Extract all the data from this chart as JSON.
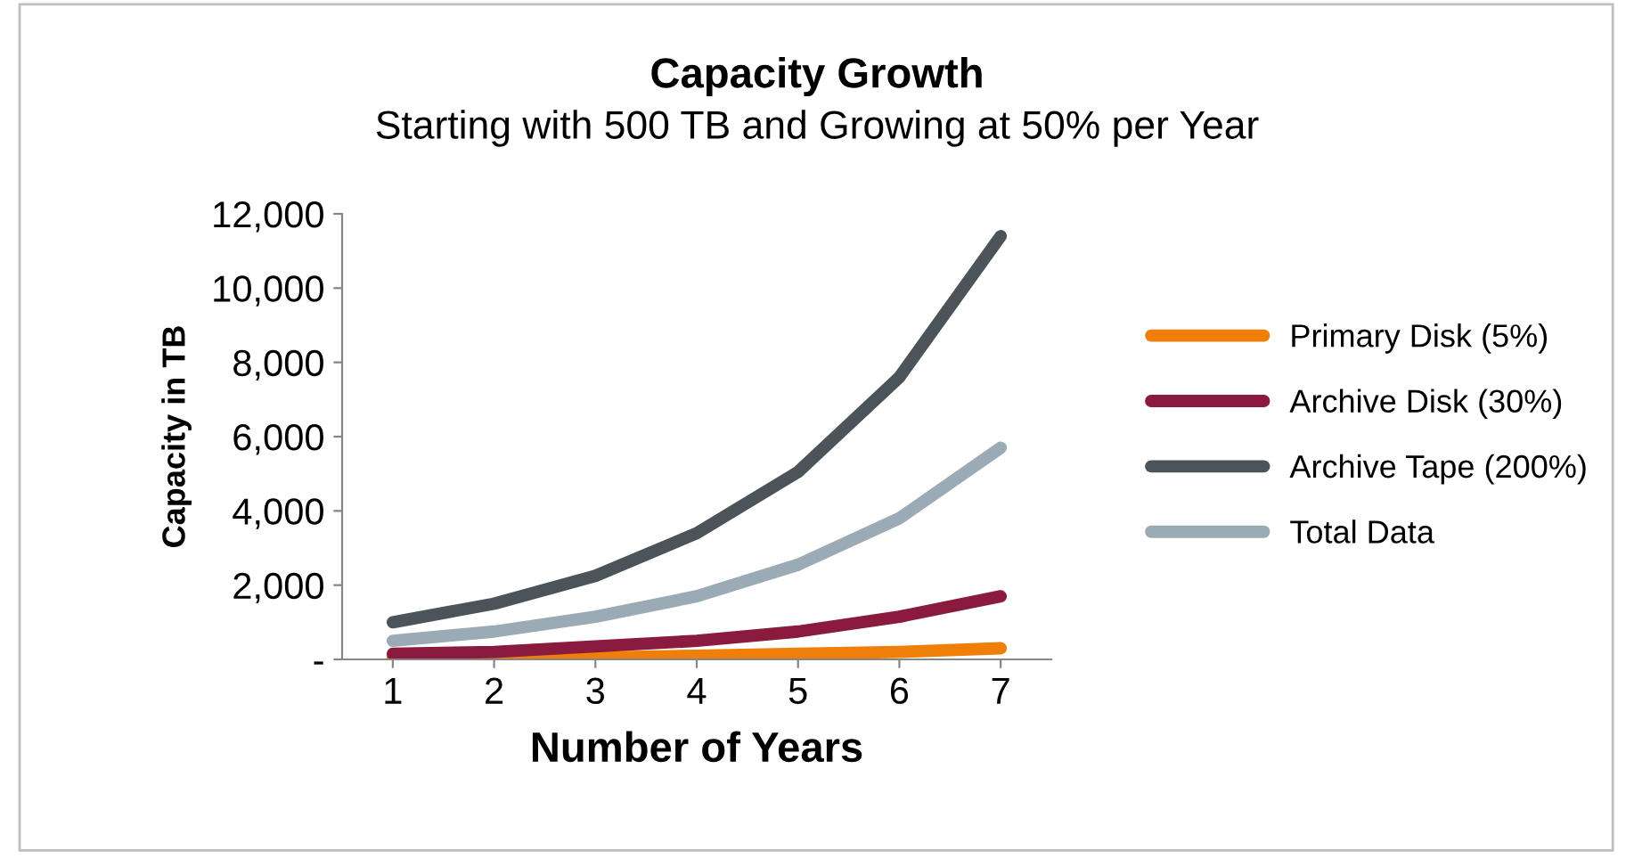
{
  "chart_data": {
    "type": "line",
    "title": "Capacity Growth",
    "subtitle": "Starting with 500 TB and Growing at 50% per Year",
    "xlabel": "Number of Years",
    "ylabel": "Capacity in TB",
    "categories": [
      "1",
      "2",
      "3",
      "4",
      "5",
      "6",
      "7"
    ],
    "series": [
      {
        "name": "Primary Disk (5%)",
        "color": "#f07f09",
        "values": [
          50,
          50,
          50,
          100,
          150,
          200,
          300
        ]
      },
      {
        "name": "Archive Disk (30%)",
        "color": "#8b1a3f",
        "values": [
          150,
          200,
          350,
          500,
          750,
          1150,
          1700
        ]
      },
      {
        "name": "Archive Tape (200%)",
        "color": "#4a5459",
        "values": [
          1000,
          1500,
          2250,
          3400,
          5050,
          7600,
          11400
        ]
      },
      {
        "name": "Total Data",
        "color": "#9aabb5",
        "values": [
          500,
          750,
          1150,
          1700,
          2550,
          3800,
          5700
        ]
      }
    ],
    "ylim": [
      0,
      12000
    ],
    "yticks": [
      {
        "value": 0,
        "label": "-"
      },
      {
        "value": 2000,
        "label": "2,000"
      },
      {
        "value": 4000,
        "label": "4,000"
      },
      {
        "value": 6000,
        "label": "6,000"
      },
      {
        "value": 8000,
        "label": "8,000"
      },
      {
        "value": 10000,
        "label": "10,000"
      },
      {
        "value": 12000,
        "label": "12,000"
      }
    ],
    "grid": false,
    "legend": "right",
    "marker": "none",
    "line_style": "solid"
  }
}
